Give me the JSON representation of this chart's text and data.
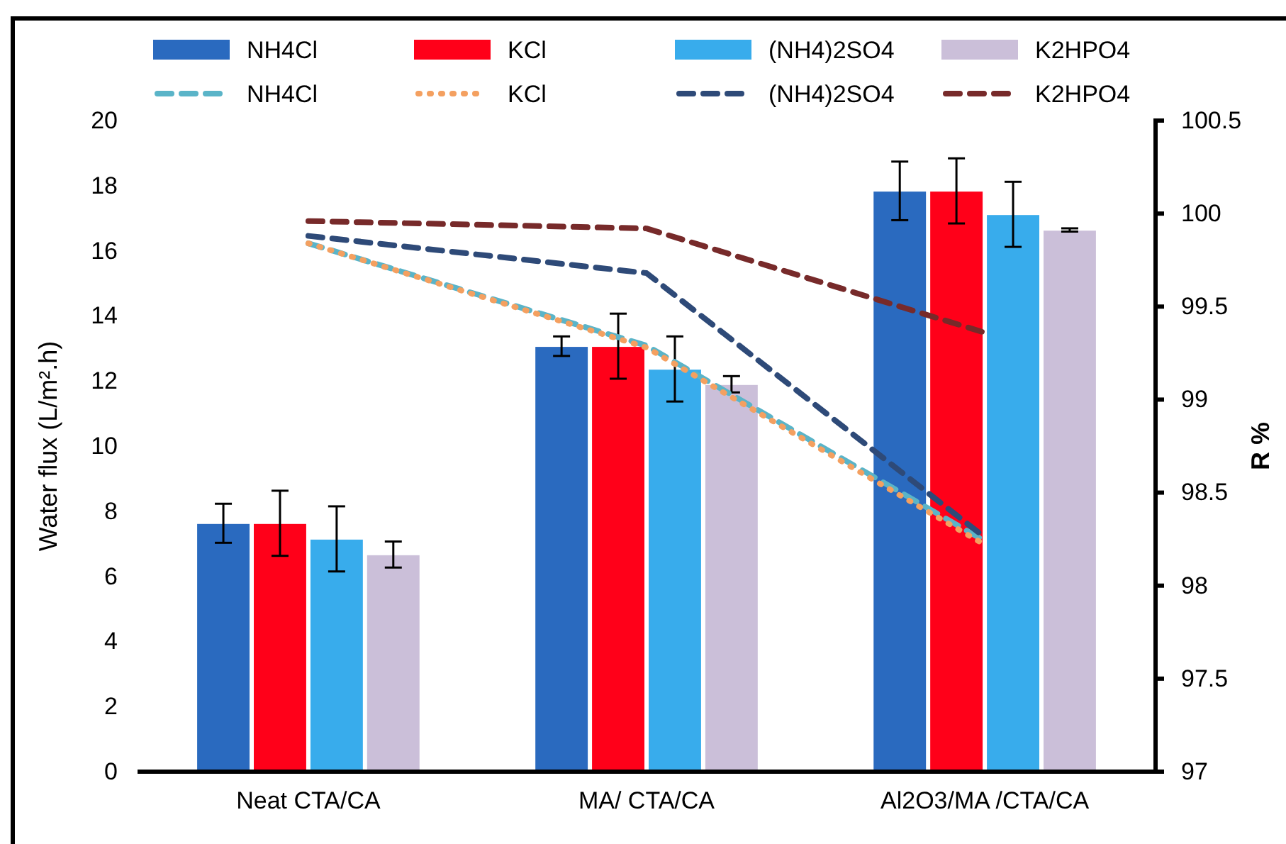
{
  "chart_data": {
    "type": "bar",
    "categories": [
      "Neat CTA/CA",
      "MA/ CTA/CA",
      "Al2O3/MA /CTA/CA"
    ],
    "ylabel": "Water flux (L/m².h)",
    "y2label": "R %",
    "ylim": [
      0,
      20
    ],
    "yticks": [
      0,
      2,
      4,
      6,
      8,
      10,
      12,
      14,
      16,
      18,
      20
    ],
    "y2lim": [
      97,
      100.5
    ],
    "y2ticks": [
      97,
      97.5,
      98,
      98.5,
      99,
      99.5,
      100,
      100.5
    ],
    "legend": "top",
    "grid": false,
    "series": [
      {
        "name": "NH4Cl",
        "color": "#2a6abf",
        "values": [
          7.63,
          13.07,
          17.84
        ],
        "errors": [
          0.6,
          0.3,
          0.9
        ]
      },
      {
        "name": "KCl",
        "color": "#ff0019",
        "values": [
          7.63,
          13.07,
          17.84
        ],
        "errors": [
          1.0,
          1.0,
          1.0
        ]
      },
      {
        "name": "(NH4)2SO4",
        "color": "#38acec",
        "values": [
          7.15,
          12.37,
          17.12
        ],
        "errors": [
          1.0,
          1.0,
          1.0
        ]
      },
      {
        "name": "K2HPO4",
        "color": "#cbbfd9",
        "values": [
          6.67,
          11.9,
          16.64
        ],
        "errors": [
          0.4,
          0.25,
          0.05
        ]
      },
      {
        "name": "NH4Cl",
        "type": "line",
        "axis": "y2",
        "color": "#5ab4c8",
        "line_style": "dashed",
        "values": [
          99.84,
          99.29,
          98.24
        ]
      },
      {
        "name": "KCl",
        "type": "line",
        "axis": "y2",
        "color": "#f4a060",
        "line_style": "dotted",
        "values": [
          99.84,
          99.28,
          98.22
        ]
      },
      {
        "name": "(NH4)2SO4",
        "type": "line",
        "axis": "y2",
        "color": "#2e4a78",
        "line_style": "dashed",
        "values": [
          99.88,
          99.68,
          98.26
        ]
      },
      {
        "name": "K2HPO4",
        "type": "line",
        "axis": "y2",
        "color": "#772a2a",
        "line_style": "dashed",
        "values": [
          99.96,
          99.92,
          99.36
        ]
      }
    ]
  }
}
